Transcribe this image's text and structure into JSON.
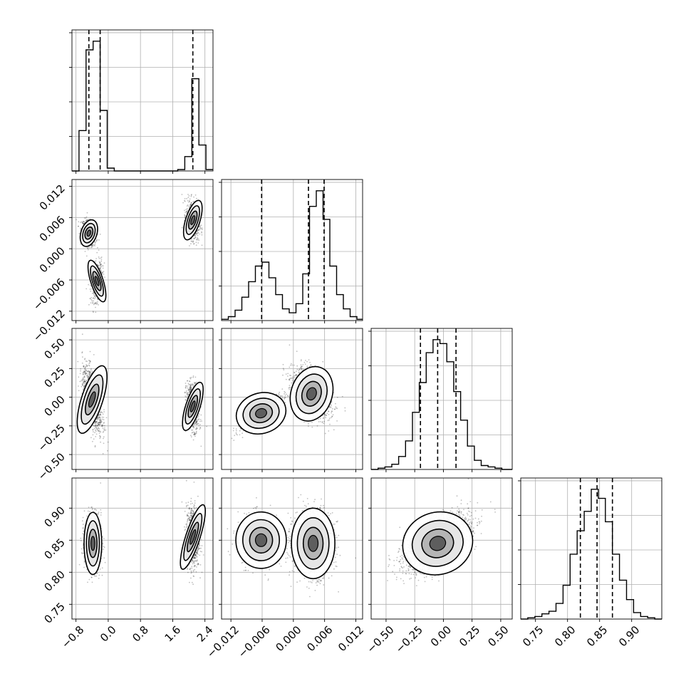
{
  "chart_data": {
    "type": "corner",
    "grid": true,
    "variables": [
      {
        "range": [
          -0.9,
          2.6
        ],
        "ticks": [
          -0.8,
          0.0,
          0.8,
          1.6,
          2.4
        ],
        "tick_labels": [
          "−0.8",
          "0.0",
          "0.8",
          "1.6",
          "2.4"
        ]
      },
      {
        "range": [
          -0.0138,
          0.0133
        ],
        "ticks": [
          -0.012,
          -0.006,
          0.0,
          0.006,
          0.012
        ],
        "tick_labels": [
          "−0.012",
          "−0.006",
          "0.000",
          "0.006",
          "0.012"
        ]
      },
      {
        "range": [
          -0.63,
          0.6
        ],
        "ticks": [
          -0.5,
          -0.25,
          0.0,
          0.25,
          0.5
        ],
        "tick_labels": [
          "−0.50",
          "−0.25",
          "0.00",
          "0.25",
          "0.50"
        ]
      },
      {
        "range": [
          0.727,
          0.947
        ],
        "ticks": [
          0.75,
          0.8,
          0.85,
          0.9
        ],
        "tick_labels": [
          "0.75",
          "0.80",
          "0.85",
          "0.90"
        ]
      }
    ],
    "histograms": [
      {
        "bin_edges": [
          -0.9,
          -0.725,
          -0.55,
          -0.375,
          -0.2,
          -0.025,
          0.15,
          0.325,
          0.5,
          0.675,
          0.85,
          1.025,
          1.2,
          1.375,
          1.55,
          1.725,
          1.9,
          2.075,
          2.25,
          2.425,
          2.6
        ],
        "counts": [
          0,
          0.28,
          0.84,
          0.9,
          0.42,
          0.02,
          0,
          0,
          0,
          0,
          0,
          0,
          0,
          0,
          0,
          0.01,
          0.1,
          0.64,
          0.18,
          0.01
        ],
        "quantiles": [
          -0.48,
          -0.2,
          2.1
        ]
      },
      {
        "bin_edges": [
          -0.0138,
          -0.0125,
          -0.0112,
          -0.0099,
          -0.0086,
          -0.0073,
          -0.006,
          -0.0047,
          -0.0034,
          -0.0021,
          -0.0008,
          0.0005,
          0.0018,
          0.0031,
          0.0044,
          0.0057,
          0.007,
          0.0083,
          0.0096,
          0.0109,
          0.0122,
          0.0133
        ],
        "counts": [
          0.01,
          0.03,
          0.08,
          0.18,
          0.3,
          0.42,
          0.45,
          0.33,
          0.2,
          0.09,
          0.06,
          0.13,
          0.36,
          0.88,
          1.0,
          0.78,
          0.42,
          0.2,
          0.09,
          0.03,
          0.01
        ],
        "quantiles": [
          -0.0061,
          0.0029,
          0.0059
        ]
      },
      {
        "bin_edges": [
          -0.63,
          -0.57,
          -0.51,
          -0.45,
          -0.39,
          -0.33,
          -0.27,
          -0.21,
          -0.15,
          -0.09,
          -0.03,
          0.03,
          0.09,
          0.15,
          0.21,
          0.27,
          0.33,
          0.39,
          0.45,
          0.51,
          0.57,
          0.6
        ],
        "counts": [
          0,
          0.01,
          0.02,
          0.04,
          0.1,
          0.22,
          0.44,
          0.67,
          0.9,
          1.0,
          0.97,
          0.83,
          0.6,
          0.38,
          0.18,
          0.07,
          0.03,
          0.02,
          0.01,
          0,
          0
        ],
        "quantiles": [
          -0.2,
          -0.05,
          0.11
        ]
      },
      {
        "bin_edges": [
          0.727,
          0.738,
          0.749,
          0.76,
          0.771,
          0.782,
          0.793,
          0.804,
          0.815,
          0.826,
          0.837,
          0.848,
          0.859,
          0.87,
          0.881,
          0.892,
          0.903,
          0.914,
          0.925,
          0.936,
          0.947
        ],
        "counts": [
          0,
          0.01,
          0.02,
          0.04,
          0.06,
          0.12,
          0.26,
          0.5,
          0.68,
          0.83,
          1.0,
          0.93,
          0.75,
          0.5,
          0.3,
          0.15,
          0.05,
          0.02,
          0.01,
          0
        ],
        "quantiles": [
          0.82,
          0.846,
          0.87
        ]
      }
    ],
    "clusters": [
      {
        "var_a": 0,
        "var_b": 1,
        "mean": [
          -0.48,
          0.003
        ],
        "sd": [
          0.09,
          0.0012
        ],
        "rho": -0.3,
        "n": 700
      },
      {
        "var_a": 0,
        "var_b": 1,
        "mean": [
          -0.28,
          -0.0062
        ],
        "sd": [
          0.07,
          0.0019
        ],
        "rho": 0.25,
        "n": 500
      },
      {
        "var_a": 0,
        "var_b": 1,
        "mean": [
          2.1,
          0.0055
        ],
        "sd": [
          0.08,
          0.0018
        ],
        "rho": -0.2,
        "n": 800
      },
      {
        "var_a": 0,
        "var_b": 2,
        "mean": [
          -0.4,
          -0.02
        ],
        "sd": [
          0.12,
          0.14
        ],
        "rho": -0.55,
        "n": 1100
      },
      {
        "var_a": 0,
        "var_b": 2,
        "mean": [
          2.1,
          -0.08
        ],
        "sd": [
          0.08,
          0.1
        ],
        "rho": -0.2,
        "n": 800
      },
      {
        "var_a": 0,
        "var_b": 3,
        "mean": [
          -0.38,
          0.845
        ],
        "sd": [
          0.1,
          0.022
        ],
        "rho": 0.0,
        "n": 1100
      },
      {
        "var_a": 0,
        "var_b": 3,
        "mean": [
          2.1,
          0.855
        ],
        "sd": [
          0.08,
          0.024
        ],
        "rho": -0.05,
        "n": 800
      },
      {
        "var_a": 1,
        "var_b": 2,
        "mean": [
          -0.0062,
          -0.14
        ],
        "sd": [
          0.0022,
          0.08
        ],
        "rho": 0.85,
        "n": 600
      },
      {
        "var_a": 1,
        "var_b": 2,
        "mean": [
          0.0035,
          0.03
        ],
        "sd": [
          0.0018,
          0.11
        ],
        "rho": -0.4,
        "n": 1300
      },
      {
        "var_a": 1,
        "var_b": 3,
        "mean": [
          -0.0062,
          0.85
        ],
        "sd": [
          0.0022,
          0.02
        ],
        "rho": 0.0,
        "n": 600
      },
      {
        "var_a": 1,
        "var_b": 3,
        "mean": [
          0.0038,
          0.845
        ],
        "sd": [
          0.0019,
          0.025
        ],
        "rho": 0.0,
        "n": 1300
      },
      {
        "var_a": 2,
        "var_b": 3,
        "mean": [
          -0.05,
          0.845
        ],
        "sd": [
          0.14,
          0.022
        ],
        "rho": 0.6,
        "n": 1900
      }
    ]
  }
}
